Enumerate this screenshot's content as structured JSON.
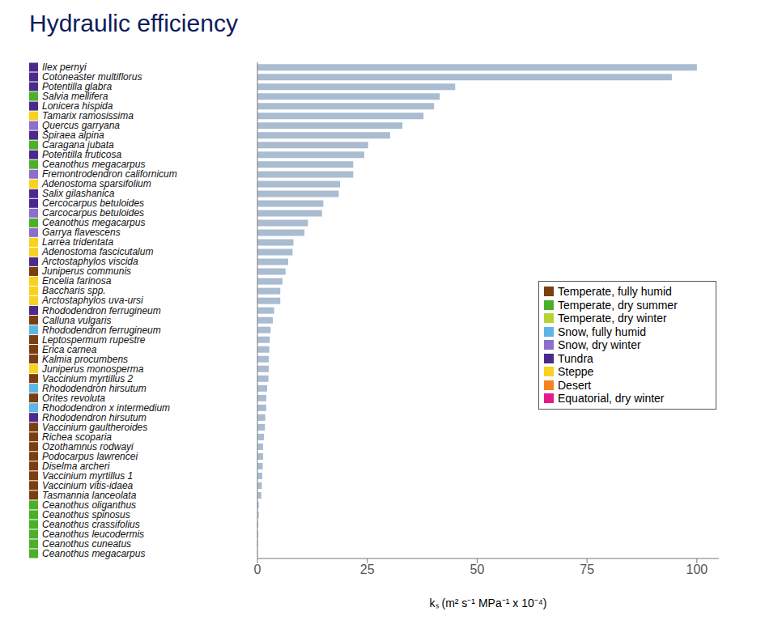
{
  "chart_data": {
    "type": "bar",
    "orientation": "horizontal",
    "title": "Hydraulic efficiency",
    "x_label": "kₛ (m² s⁻¹ MPa⁻¹ x 10⁻⁴)",
    "categories": [
      "Ilex pernyi",
      "Cotoneaster multiflorus",
      "Potentilla glabra",
      "Salvia mellifera",
      "Lonicera hispida",
      "Tamarix ramosissima",
      "Quercus garryana",
      "Spiraea alpina",
      "Caragana jubata",
      "Potentilla fruticosa",
      "Ceanothus megacarpus",
      "Fremontrodendron californicum",
      "Adenostoma sparsifolium",
      "Salix gilashanica",
      "Cercocarpus betuloides",
      "Carcocarpus betuloides",
      "Ceanothus megacarpus",
      "Garrya flavescens",
      "Larrea tridentata",
      "Adenostoma fascicutalum",
      "Arctostaphylos viscida",
      "Juniperus communis",
      "Encelia farinosa",
      "Baccharis spp.",
      "Arctostaphylos uva-ursi",
      "Rhododendron ferrugineum",
      "Calluna vulgaris",
      "Rhododendron ferrugineum",
      "Leptospermum rupestre",
      "Erica carnea",
      "Kalmia procumbens",
      "Juniperus monosperma",
      "Vaccinium myrtillus 2",
      "Rhododendron hirsutum",
      "Orites revoluta",
      "Rhododendron x intermedium",
      "Rhododendron hirsutum",
      "Vaccinium gaultheroides",
      "Richea scoparia",
      "Ozothamnus rodwayi",
      "Podocarpus lawrencei",
      "Diselma archeri",
      "Vaccinium myrtillus 1",
      "Vaccinium vitis-idaea",
      "Tasmannia lanceolata",
      "Ceanothus oliganthus",
      "Ceanothus spinosus",
      "Ceanothus crassifolius",
      "Ceanothus leucodermis",
      "Ceanothus cuneatus",
      "Ceanothus megacarpus"
    ],
    "values": [
      100,
      94.3,
      45,
      41.5,
      40.2,
      37.8,
      33,
      30.2,
      25.2,
      24.3,
      21.8,
      21.8,
      18.8,
      18.5,
      15,
      14.7,
      11.5,
      10.7,
      8.2,
      8.0,
      7.0,
      6.4,
      5.7,
      5.2,
      5.2,
      3.8,
      3.5,
      3.0,
      2.8,
      2.7,
      2.6,
      2.6,
      2.5,
      2.2,
      2.0,
      2.0,
      1.8,
      1.7,
      1.5,
      1.3,
      1.3,
      1.2,
      1.1,
      1.0,
      0.9,
      0.3,
      0.3,
      0.2,
      0.2,
      0.15,
      0.1
    ],
    "color": "#a9bcd0",
    "climate": [
      "Tundra",
      "Tundra",
      "Tundra",
      "Temperate, dry summer",
      "Tundra",
      "Steppe",
      "Snow, dry winter",
      "Tundra",
      "Temperate, dry summer",
      "Tundra",
      "Temperate, dry summer",
      "Snow, dry winter",
      "Steppe",
      "Tundra",
      "Tundra",
      "Snow, dry winter",
      "Temperate, dry summer",
      "Snow, dry winter",
      "Steppe",
      "Steppe",
      "Tundra",
      "Temperate, fully humid",
      "Steppe",
      "Steppe",
      "Steppe",
      "Tundra",
      "Temperate, fully humid",
      "Snow, fully humid",
      "Temperate, fully humid",
      "Temperate, fully humid",
      "Temperate, fully humid",
      "Steppe",
      "Temperate, fully humid",
      "Snow, fully humid",
      "Temperate, fully humid",
      "Snow, fully humid",
      "Tundra",
      "Temperate, fully humid",
      "Temperate, fully humid",
      "Temperate, fully humid",
      "Temperate, fully humid",
      "Temperate, fully humid",
      "Temperate, fully humid",
      "Temperate, fully humid",
      "Temperate, fully humid",
      "Temperate, dry summer",
      "Temperate, dry summer",
      "Temperate, dry summer",
      "Temperate, dry summer",
      "Temperate, dry summer",
      "Temperate, dry summer"
    ],
    "climates": [
      {
        "name": "Temperate, fully humid",
        "color": "#7a3e10"
      },
      {
        "name": "Temperate, dry summer",
        "color": "#4caf2a"
      },
      {
        "name": "Temperate, dry winter",
        "color": "#b5d334"
      },
      {
        "name": "Snow, fully humid",
        "color": "#5bb6e6"
      },
      {
        "name": "Snow, dry winter",
        "color": "#8b6fcb"
      },
      {
        "name": "Tundra",
        "color": "#4b2a8c"
      },
      {
        "name": "Steppe",
        "color": "#f7d21e"
      },
      {
        "name": "Desert",
        "color": "#f58220"
      },
      {
        "name": "Equatorial, dry winter",
        "color": "#e5198a"
      }
    ],
    "legend": "right",
    "xlim": [
      0,
      105
    ],
    "xticks": [
      0,
      25,
      50,
      75,
      100
    ]
  }
}
